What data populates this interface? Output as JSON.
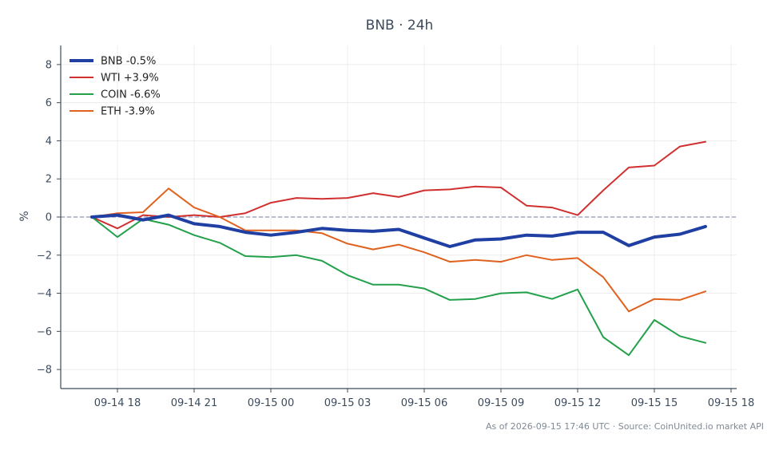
{
  "chart_data": {
    "type": "line",
    "title": "BNB · 24h",
    "ylabel": "%",
    "ylim": [
      -9,
      9
    ],
    "yticks": [
      -8,
      -6,
      -4,
      -2,
      0,
      2,
      4,
      6,
      8
    ],
    "xticks": [
      "09-14 18",
      "09-14 21",
      "09-15 00",
      "09-15 03",
      "09-15 06",
      "09-15 09",
      "09-15 12",
      "09-15 15",
      "09-15 18"
    ],
    "x": [
      "09-14 17",
      "09-14 18",
      "09-14 19",
      "09-14 20",
      "09-14 21",
      "09-14 22",
      "09-14 23",
      "09-15 00",
      "09-15 01",
      "09-15 02",
      "09-15 03",
      "09-15 04",
      "09-15 05",
      "09-15 06",
      "09-15 07",
      "09-15 08",
      "09-15 09",
      "09-15 10",
      "09-15 11",
      "09-15 12",
      "09-15 13",
      "09-15 14",
      "09-15 15",
      "09-15 16",
      "09-15 17"
    ],
    "baseline": 0,
    "grid": true,
    "legend_position": "top-left",
    "series": [
      {
        "name": "BNB -0.5%",
        "color": "#1f3fa3",
        "width": 4,
        "values": [
          0.0,
          0.1,
          -0.15,
          0.1,
          -0.35,
          -0.5,
          -0.8,
          -0.95,
          -0.8,
          -0.6,
          -0.7,
          -0.75,
          -0.65,
          -1.1,
          -1.55,
          -1.2,
          -1.15,
          -0.95,
          -1.0,
          -0.8,
          -0.8,
          -1.5,
          -1.05,
          -0.9,
          -0.5
        ]
      },
      {
        "name": "WTI +3.9%",
        "color": "#d03030",
        "width": 2,
        "values": [
          0.0,
          -0.6,
          0.1,
          0.0,
          0.1,
          0.0,
          0.2,
          0.75,
          1.0,
          0.95,
          1.0,
          1.25,
          1.05,
          1.4,
          1.45,
          1.6,
          1.55,
          0.6,
          0.5,
          0.1,
          1.4,
          2.6,
          2.7,
          3.7,
          3.95
        ]
      },
      {
        "name": "COIN -6.6%",
        "color": "#22a04a",
        "width": 2,
        "values": [
          0.0,
          -1.05,
          -0.1,
          -0.4,
          -0.95,
          -1.35,
          -2.05,
          -2.1,
          -2.0,
          -2.3,
          -3.05,
          -3.55,
          -3.55,
          -3.75,
          -4.35,
          -4.3,
          -4.0,
          -3.95,
          -4.3,
          -3.8,
          -6.3,
          -7.25,
          -5.4,
          -6.25,
          -6.6
        ]
      },
      {
        "name": "ETH -3.9%",
        "color": "#e0611e",
        "width": 2,
        "values": [
          0.0,
          0.2,
          0.25,
          1.5,
          0.5,
          0.0,
          -0.7,
          -0.7,
          -0.7,
          -0.85,
          -1.4,
          -1.7,
          -1.45,
          -1.85,
          -2.35,
          -2.25,
          -2.35,
          -2.0,
          -2.25,
          -2.15,
          -3.15,
          -4.95,
          -4.3,
          -4.35,
          -3.9
        ]
      }
    ]
  },
  "footer": "As of 2026-09-15 17:46 UTC · Source: CoinUnited.io market API"
}
